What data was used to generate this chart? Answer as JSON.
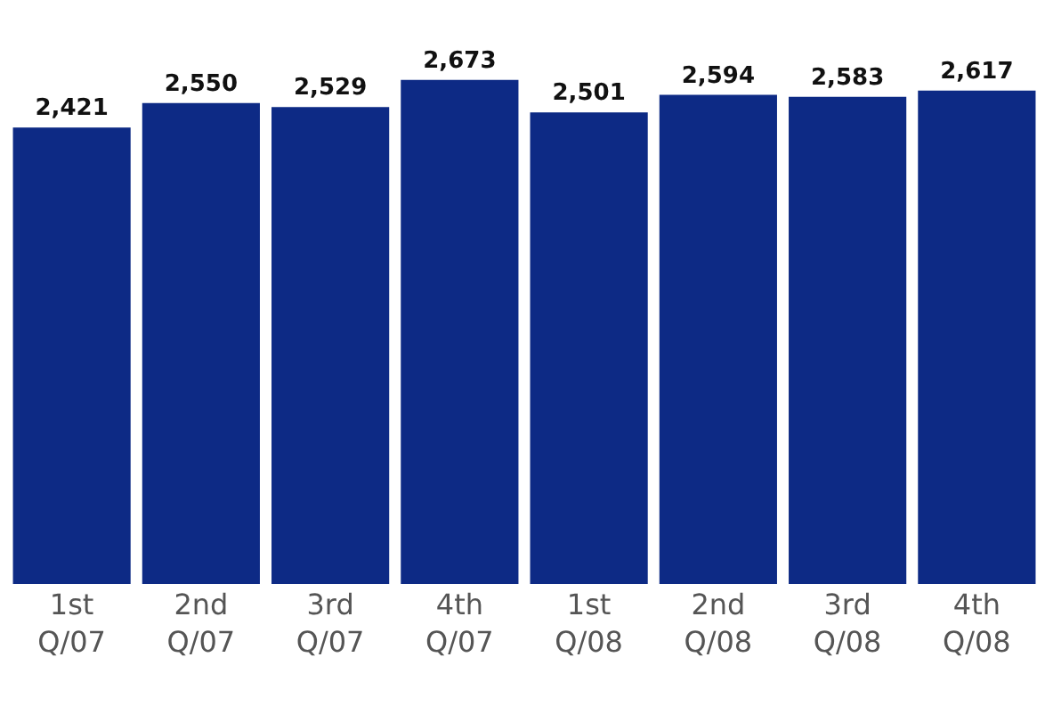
{
  "chart_data": {
    "type": "bar",
    "categories": [
      "1st\nQ/07",
      "2nd\nQ/07",
      "3rd\nQ/07",
      "4th\nQ/07",
      "1st\nQ/08",
      "2nd\nQ/08",
      "3rd\nQ/08",
      "4th\nQ/08"
    ],
    "values": [
      2421,
      2550,
      2529,
      2673,
      2501,
      2594,
      2583,
      2617
    ],
    "value_labels": [
      "2,421",
      "2,550",
      "2,529",
      "2,673",
      "2,501",
      "2,594",
      "2,583",
      "2,617"
    ],
    "color": "#0d2a85",
    "tick_labels": "x",
    "grid": false,
    "legend": false
  }
}
